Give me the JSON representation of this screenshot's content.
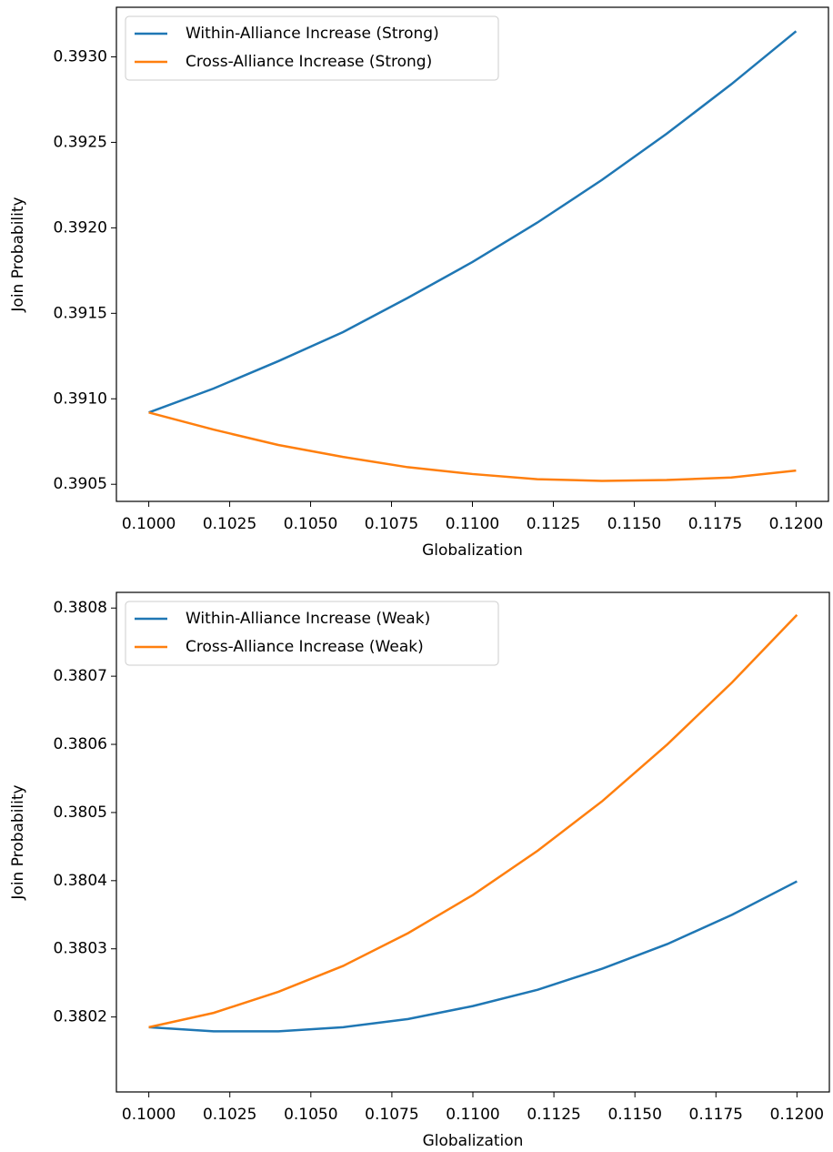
{
  "chart_data": [
    {
      "type": "line",
      "xlabel": "Globalization",
      "ylabel": "Join Probability",
      "x": [
        0.1,
        0.102,
        0.104,
        0.106,
        0.108,
        0.11,
        0.112,
        0.114,
        0.116,
        0.118,
        0.12
      ],
      "series": [
        {
          "name": "Within-Alliance Increase (Strong)",
          "color": "#1f77b4",
          "values": [
            0.39092,
            0.39106,
            0.39122,
            0.39139,
            0.39159,
            0.3918,
            0.39203,
            0.39228,
            0.39255,
            0.39284,
            0.39315
          ]
        },
        {
          "name": "Cross-Alliance Increase (Strong)",
          "color": "#ff7f0e",
          "values": [
            0.39092,
            0.39082,
            0.39073,
            0.39066,
            0.3906,
            0.39056,
            0.39053,
            0.39052,
            0.390525,
            0.39054,
            0.39058
          ]
        }
      ],
      "xlim": [
        0.099,
        0.121
      ],
      "ylim": [
        0.3904,
        0.39329
      ],
      "xticks": [
        {
          "value": 0.1,
          "label": "0.1000"
        },
        0.1025,
        {
          "value": 0.105,
          "label": "0.1050"
        },
        0.1075,
        {
          "value": 0.11,
          "label": "0.1100"
        },
        0.1125,
        {
          "value": 0.115,
          "label": "0.1150"
        },
        0.1175,
        {
          "value": 0.12,
          "label": "0.1200"
        }
      ],
      "yticks": [
        0.3905,
        {
          "value": 0.391,
          "label": "0.3910"
        },
        0.3915,
        {
          "value": 0.392,
          "label": "0.3920"
        },
        0.3925,
        {
          "value": 0.393,
          "label": "0.3930"
        }
      ],
      "legend": "upper left"
    },
    {
      "type": "line",
      "xlabel": "Globalization",
      "ylabel": "Join Probability",
      "x": [
        0.1,
        0.102,
        0.104,
        0.106,
        0.108,
        0.11,
        0.112,
        0.114,
        0.116,
        0.118,
        0.12
      ],
      "series": [
        {
          "name": "Within-Alliance Increase (Weak)",
          "color": "#1f77b4",
          "values": [
            0.380185,
            0.380179,
            0.380179,
            0.380185,
            0.380197,
            0.380216,
            0.38024,
            0.380271,
            0.380307,
            0.38035,
            0.380399
          ]
        },
        {
          "name": "Cross-Alliance Increase (Weak)",
          "color": "#ff7f0e",
          "values": [
            0.380185,
            0.380206,
            0.380237,
            0.380275,
            0.380323,
            0.380379,
            0.380444,
            0.380517,
            0.3806,
            0.380691,
            0.38079
          ]
        }
      ],
      "xlim": [
        0.099,
        0.121
      ],
      "ylim": [
        0.38009,
        0.380823
      ],
      "xticks": [
        {
          "value": 0.1,
          "label": "0.1000"
        },
        0.1025,
        {
          "value": 0.105,
          "label": "0.1050"
        },
        0.1075,
        {
          "value": 0.11,
          "label": "0.1100"
        },
        0.1125,
        {
          "value": 0.115,
          "label": "0.1150"
        },
        0.1175,
        {
          "value": 0.12,
          "label": "0.1200"
        }
      ],
      "yticks": [
        {
          "value": 0.3802,
          "label": "0.3802"
        },
        0.3803,
        0.3804,
        0.3805,
        0.3806,
        0.3807,
        0.3808
      ],
      "legend": "upper left"
    }
  ]
}
